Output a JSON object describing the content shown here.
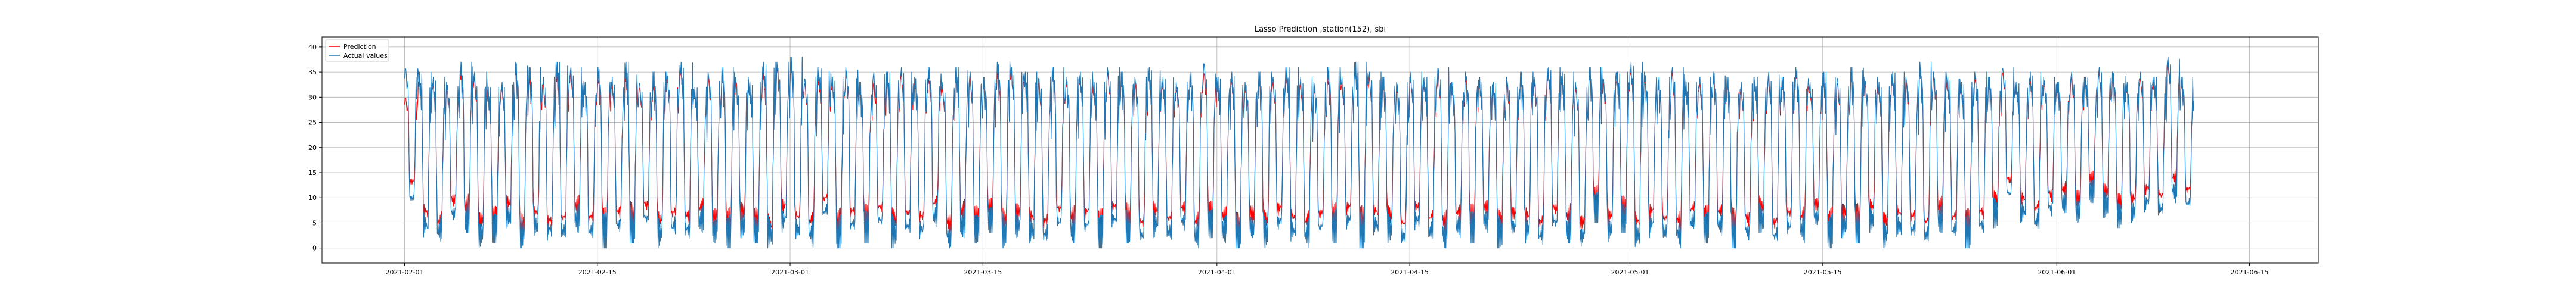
{
  "chart_data": {
    "type": "line",
    "title": "Lasso Prediction ,station(152), sbi",
    "xlabel": "",
    "ylabel": "",
    "x_range": [
      "2021-01-26",
      "2021-06-20"
    ],
    "x_data_range": [
      "2021-02-01",
      "2021-06-08"
    ],
    "ylim": [
      -3,
      42
    ],
    "x_ticks": [
      "2021-02-01",
      "2021-02-15",
      "2021-03-01",
      "2021-03-15",
      "2021-04-01",
      "2021-04-15",
      "2021-05-01",
      "2021-05-15",
      "2021-06-01",
      "2021-06-15"
    ],
    "y_ticks": [
      0,
      5,
      10,
      15,
      20,
      25,
      30,
      35,
      40
    ],
    "grid": true,
    "legend_position": "upper-left",
    "series": [
      {
        "name": "Prediction",
        "color": "#ff0000",
        "sampling": "hourly",
        "daily_high": [
          30,
          34,
          33,
          32,
          35,
          34,
          31,
          32,
          36,
          34,
          33,
          35,
          35,
          32,
          34,
          33,
          35,
          32,
          33,
          34,
          36,
          31,
          34,
          35,
          33,
          32,
          35,
          36,
          37,
          33,
          34,
          33,
          35,
          32,
          33,
          34,
          35,
          33,
          34,
          32,
          35,
          34,
          33,
          35,
          35,
          34,
          33,
          35,
          33,
          34,
          32,
          35,
          34,
          33,
          35,
          33,
          32,
          34,
          35,
          33,
          34,
          32,
          34,
          33,
          35,
          33,
          32,
          34,
          33,
          36,
          34,
          33,
          32,
          34,
          33,
          35,
          32,
          34,
          33,
          32,
          33,
          34,
          33,
          35,
          34,
          32,
          35,
          33,
          34,
          36,
          34,
          33,
          35,
          32,
          33,
          34,
          33,
          32,
          33,
          34,
          33,
          35,
          32,
          34,
          33,
          35,
          33,
          32,
          34,
          33,
          36,
          34,
          33,
          32,
          34,
          33,
          35,
          32,
          34,
          33,
          32,
          34,
          33,
          35,
          34,
          32,
          34,
          33,
          37,
          33
        ],
        "daily_low": [
          12,
          5,
          3,
          8,
          6,
          3,
          4,
          7,
          2,
          5,
          3,
          4,
          6,
          4,
          3,
          5,
          4,
          7,
          3,
          5,
          4,
          6,
          4,
          3,
          5,
          4,
          2,
          6,
          4,
          3,
          8,
          3,
          5,
          4,
          6,
          3,
          5,
          4,
          7,
          3,
          5,
          4,
          6,
          3,
          5,
          4,
          3,
          6,
          4,
          5,
          3,
          6,
          4,
          3,
          5,
          4,
          6,
          3,
          5,
          4,
          2,
          5,
          3,
          6,
          4,
          3,
          5,
          4,
          6,
          3,
          5,
          4,
          3,
          6,
          4,
          3,
          5,
          4,
          6,
          3,
          5,
          4,
          3,
          6,
          4,
          3,
          8,
          4,
          6,
          3,
          5,
          4,
          3,
          6,
          4,
          5,
          3,
          4,
          6,
          3,
          5,
          4,
          7,
          3,
          5,
          4,
          6,
          3,
          5,
          4,
          3,
          6,
          4,
          3,
          5,
          7,
          12,
          8,
          6,
          9,
          10,
          8,
          12,
          9,
          7,
          8,
          10,
          9,
          12,
          10
        ]
      },
      {
        "name": "Actual values",
        "color": "#1f77b4",
        "sampling": "hourly",
        "daily_high": [
          36,
          35,
          34,
          33,
          37,
          35,
          32,
          33,
          37,
          36,
          34,
          37,
          36,
          33,
          36,
          34,
          37,
          33,
          35,
          35,
          37,
          32,
          35,
          36,
          34,
          33,
          37,
          37,
          38,
          34,
          36,
          34,
          36,
          33,
          35,
          35,
          36,
          34,
          36,
          33,
          36,
          35,
          34,
          37,
          36,
          35,
          34,
          36,
          34,
          35,
          33,
          36,
          35,
          34,
          36,
          34,
          33,
          35,
          37,
          34,
          35,
          33,
          35,
          34,
          36,
          34,
          33,
          36,
          34,
          37,
          35,
          34,
          33,
          35,
          34,
          36,
          33,
          35,
          34,
          33,
          34,
          35,
          34,
          36,
          35,
          33,
          36,
          34,
          35,
          37,
          35,
          34,
          36,
          33,
          34,
          35,
          34,
          33,
          34,
          35,
          34,
          36,
          33,
          35,
          34,
          36,
          34,
          33,
          35,
          34,
          37,
          35,
          34,
          33,
          35,
          34,
          36,
          33,
          35,
          34,
          33,
          35,
          34,
          36,
          35,
          33,
          35,
          34,
          38,
          34
        ],
        "daily_low": [
          8,
          2,
          1,
          5,
          3,
          0,
          1,
          4,
          0,
          2,
          1,
          1,
          3,
          1,
          0,
          2,
          1,
          4,
          0,
          2,
          1,
          3,
          1,
          0,
          2,
          1,
          0,
          3,
          1,
          0,
          5,
          0,
          2,
          1,
          3,
          0,
          2,
          1,
          4,
          0,
          2,
          1,
          3,
          0,
          2,
          1,
          0,
          3,
          1,
          2,
          0,
          3,
          1,
          0,
          2,
          1,
          3,
          0,
          2,
          1,
          0,
          2,
          0,
          3,
          1,
          0,
          2,
          1,
          3,
          0,
          2,
          1,
          0,
          3,
          1,
          0,
          2,
          1,
          3,
          0,
          2,
          1,
          0,
          3,
          1,
          0,
          5,
          1,
          3,
          0,
          2,
          1,
          0,
          3,
          1,
          2,
          0,
          1,
          3,
          0,
          2,
          1,
          4,
          0,
          2,
          1,
          3,
          0,
          2,
          1,
          0,
          3,
          1,
          0,
          2,
          4,
          9,
          5,
          3,
          6,
          7,
          5,
          9,
          6,
          4,
          5,
          7,
          6,
          9,
          7
        ]
      }
    ]
  }
}
